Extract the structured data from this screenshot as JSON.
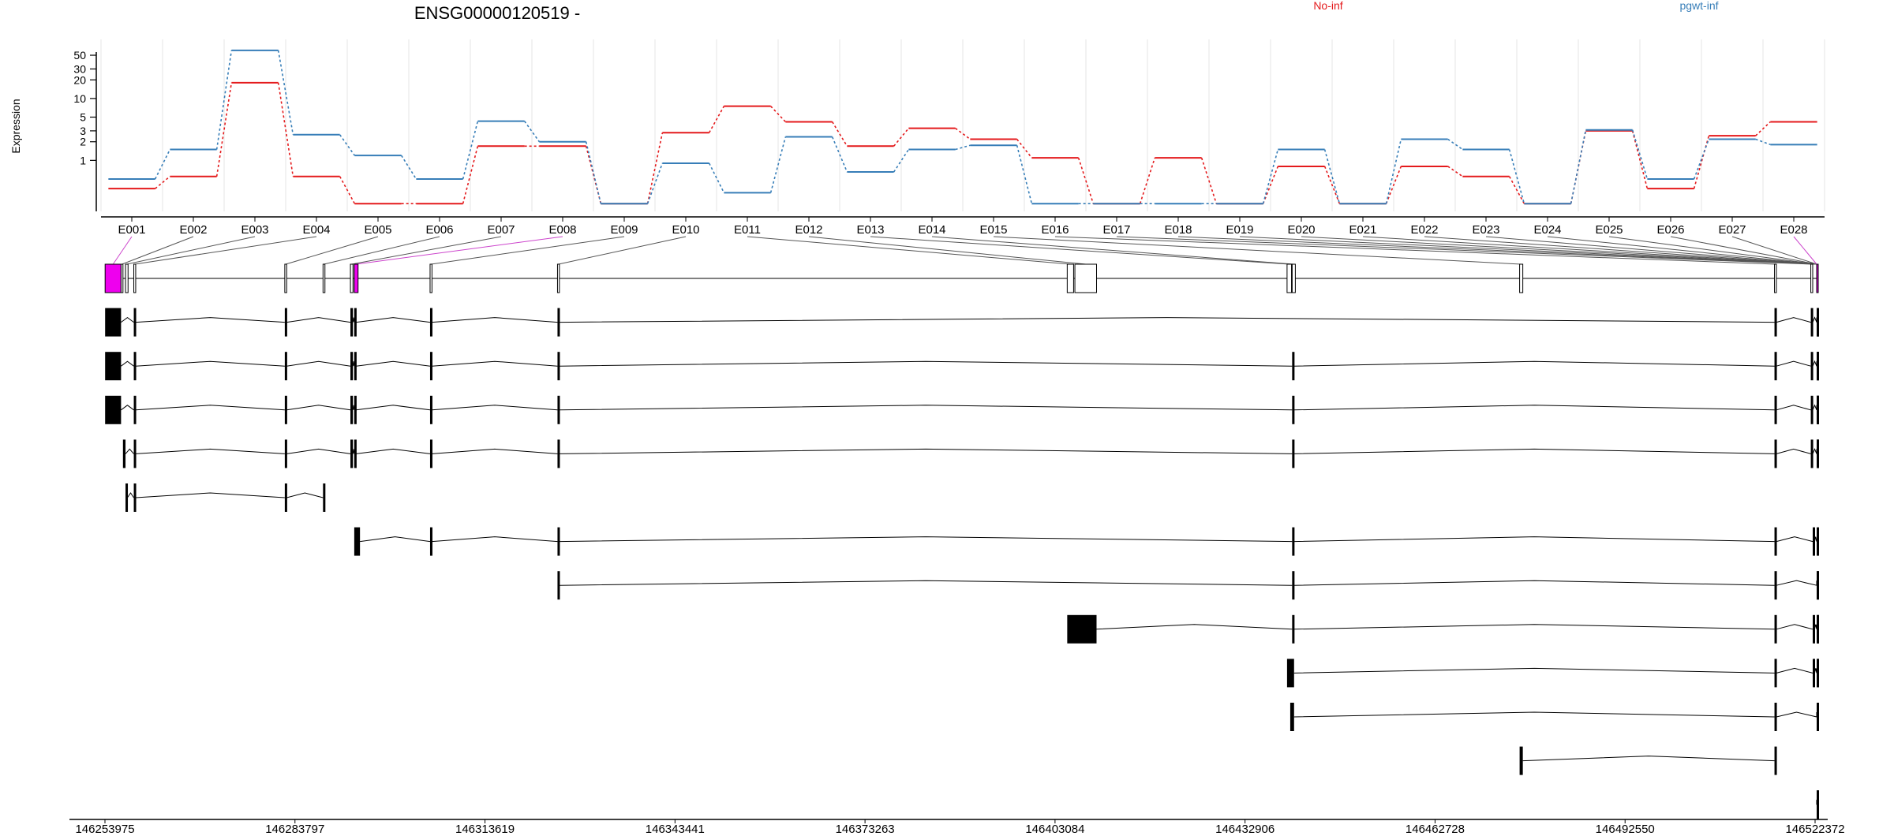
{
  "title": "ENSG00000120519 -",
  "colors": {
    "no_inf": "#e41a1c",
    "pgwt_inf": "#377eb8",
    "highlight": "#ee00ee",
    "exon": "#000000"
  },
  "chart_data": [
    {
      "type": "line",
      "ylabel": "Expression",
      "y_scale": "log",
      "y_ticks": [
        1,
        2,
        3,
        5,
        10,
        20,
        30,
        50
      ],
      "y_tick_labels": [
        "1",
        "2",
        "3",
        "5",
        "10",
        "20",
        "30",
        "50"
      ],
      "y_range": [
        0.15,
        90
      ],
      "grid": "vertical",
      "legend_position": "top-right",
      "categories": [
        "E001",
        "E002",
        "E003",
        "E004",
        "E005",
        "E006",
        "E007",
        "E008",
        "E009",
        "E010",
        "E011",
        "E012",
        "E013",
        "E014",
        "E015",
        "E016",
        "E017",
        "E018",
        "E019",
        "E020",
        "E021",
        "E022",
        "E023",
        "E024",
        "E025",
        "E026",
        "E027",
        "E028"
      ],
      "series": [
        {
          "name": "No-inf",
          "color": "#e41a1c",
          "values": [
            0.35,
            0.55,
            18,
            0.55,
            0.2,
            0.2,
            1.7,
            1.7,
            0.2,
            2.8,
            7.5,
            4.2,
            1.7,
            3.3,
            2.2,
            1.1,
            0.2,
            1.1,
            0.2,
            0.8,
            0.2,
            0.8,
            0.55,
            0.2,
            3.0,
            0.35,
            2.5,
            4.2
          ]
        },
        {
          "name": "pgwt-inf",
          "color": "#377eb8",
          "values": [
            0.5,
            1.5,
            60,
            2.6,
            1.2,
            0.5,
            4.3,
            2.0,
            0.2,
            0.9,
            0.3,
            2.4,
            0.65,
            1.5,
            1.75,
            0.2,
            0.2,
            0.2,
            0.2,
            1.5,
            0.2,
            2.2,
            1.5,
            0.2,
            3.1,
            0.5,
            2.2,
            1.8
          ]
        }
      ]
    },
    {
      "type": "gene-model",
      "x_tick_labels": [
        "146253975",
        "146283797",
        "146313619",
        "146343441",
        "146373263",
        "146403084",
        "146432906",
        "146462728",
        "146492550",
        "146522372"
      ],
      "x_range": [
        146253975,
        146522372
      ],
      "exon_ids": [
        "E001",
        "E002",
        "E003",
        "E004",
        "E005",
        "E006",
        "E007",
        "E008",
        "E009",
        "E010",
        "E011",
        "E012",
        "E013",
        "E014",
        "E015",
        "E016",
        "E017",
        "E018",
        "E019",
        "E020",
        "E021",
        "E022",
        "E023",
        "E024",
        "E025",
        "E026",
        "E027",
        "E028"
      ],
      "exon_spans": [
        [
          146254000,
          146256500
        ],
        [
          146256500,
          146256800
        ],
        [
          146257200,
          146257600
        ],
        [
          146258500,
          146258800
        ],
        [
          146282200,
          146282500
        ],
        [
          146288200,
          146288500
        ],
        [
          146292500,
          146292900
        ],
        [
          146293100,
          146293700
        ],
        [
          146305000,
          146305300
        ],
        [
          146325000,
          146325300
        ],
        [
          146405000,
          146406000
        ],
        [
          146406200,
          146409600
        ],
        [
          146439500,
          146440200
        ],
        [
          146440300,
          146440800
        ],
        [
          146476000,
          146476500
        ],
        [
          146516000,
          146516300
        ],
        [
          146521700,
          146522000
        ],
        [
          146527000,
          146527300
        ],
        [
          146531800,
          146532200
        ],
        [
          146533000,
          146533400
        ],
        [
          146543800,
          146544200
        ],
        [
          146551000,
          146552200
        ],
        [
          146556000,
          146560000
        ],
        [
          146562000,
          146564000
        ],
        [
          146566000,
          146566900
        ],
        [
          146568500,
          146569100
        ],
        [
          146571000,
          146571500
        ],
        [
          146572000,
          146572372
        ]
      ],
      "flattened_exon_fill": [
        "#ee00ee",
        "#ffffff",
        "#ffffff",
        "#ffffff",
        "#ffffff",
        "#ffffff",
        "#ffffff",
        "#ee00ee",
        "#ffffff",
        "#ffffff",
        "#ffffff",
        "#ffffff",
        "#ffffff",
        "#ffffff",
        "#ffffff",
        "#ffffff",
        "#ffffff",
        "#ffffff",
        "#ffffff",
        "#ffffff",
        "#ffffff",
        "#ffffff",
        "#ffffff",
        "#ffffff",
        "#ffffff",
        "#ffffff",
        "#ffffff",
        "#ee00ee"
      ],
      "transcripts": [
        {
          "exons": [
            [
              146254000,
              146256500
            ],
            [
              146258500,
              146258800
            ],
            [
              146282200,
              146282500
            ],
            [
              146292500,
              146292900
            ],
            [
              146293100,
              146293400
            ],
            [
              146305000,
              146305300
            ],
            [
              146325000,
              146325300
            ],
            [
              146516000,
              146516300
            ],
            [
              146521700,
              146522000
            ],
            [
              146527000,
              146527300
            ],
            [
              146533000,
              146533400
            ],
            [
              146535800,
              146536300
            ]
          ]
        },
        {
          "exons": [
            [
              146254000,
              146256500
            ],
            [
              146258500,
              146258800
            ],
            [
              146282200,
              146282500
            ],
            [
              146292500,
              146292900
            ],
            [
              146293100,
              146293400
            ],
            [
              146305000,
              146305300
            ],
            [
              146325000,
              146325300
            ],
            [
              146440300,
              146440600
            ],
            [
              146516000,
              146516300
            ],
            [
              146521700,
              146522000
            ],
            [
              146527000,
              146527300
            ],
            [
              146533000,
              146533400
            ],
            [
              146535800,
              146536300
            ]
          ]
        },
        {
          "exons": [
            [
              146254000,
              146256500
            ],
            [
              146258500,
              146258800
            ],
            [
              146282200,
              146282500
            ],
            [
              146292500,
              146292900
            ],
            [
              146293100,
              146293400
            ],
            [
              146305000,
              146305300
            ],
            [
              146325000,
              146325300
            ],
            [
              146440300,
              146440600
            ],
            [
              146516000,
              146516300
            ],
            [
              146521700,
              146522000
            ],
            [
              146527000,
              146527300
            ],
            [
              146533000,
              146533400
            ],
            [
              146535800,
              146536300
            ]
          ]
        },
        {
          "exons": [
            [
              146256800,
              146257200
            ],
            [
              146258500,
              146258800
            ],
            [
              146282200,
              146282500
            ],
            [
              146292500,
              146292900
            ],
            [
              146293100,
              146293400
            ],
            [
              146305000,
              146305300
            ],
            [
              146325000,
              146325300
            ],
            [
              146440300,
              146440600
            ],
            [
              146516000,
              146516300
            ],
            [
              146521700,
              146522000
            ],
            [
              146527000,
              146527300
            ],
            [
              146533000,
              146533400
            ],
            [
              146535800,
              146536300
            ]
          ]
        },
        {
          "exons": [
            [
              146257200,
              146257500
            ],
            [
              146258500,
              146258800
            ],
            [
              146282200,
              146282500
            ],
            [
              146288200,
              146288500
            ]
          ]
        },
        {
          "exons": [
            [
              146293100,
              146294000
            ],
            [
              146305000,
              146305300
            ],
            [
              146325000,
              146325300
            ],
            [
              146440300,
              146440600
            ],
            [
              146516000,
              146516300
            ],
            [
              146522000,
              146522300
            ],
            [
              146535800,
              146536300
            ]
          ]
        },
        {
          "exons": [
            [
              146325000,
              146325300
            ],
            [
              146440300,
              146440600
            ],
            [
              146516000,
              146516300
            ],
            [
              146528000,
              146528300
            ],
            [
              146535800,
              146536300
            ]
          ]
        },
        {
          "exons": [
            [
              146405000,
              146409600
            ],
            [
              146440300,
              146440600
            ],
            [
              146516000,
              146516300
            ],
            [
              146522000,
              146522300
            ],
            [
              146528000,
              146528300
            ],
            [
              146535800,
              146536300
            ]
          ]
        },
        {
          "exons": [
            [
              146439500,
              146440600
            ],
            [
              146516000,
              146516300
            ],
            [
              146522000,
              146522300
            ],
            [
              146528000,
              146528300
            ],
            [
              146535800,
              146536300
            ]
          ]
        },
        {
          "exons": [
            [
              146440000,
              146440600
            ],
            [
              146516000,
              146516300
            ],
            [
              146528000,
              146528300
            ],
            [
              146535800,
              146536300
            ]
          ]
        },
        {
          "exons": [
            [
              146476000,
              146476500
            ],
            [
              146516000,
              146516300
            ]
          ]
        },
        {
          "exons": [
            [
              146530500,
              146531800
            ],
            [
              146533000,
              146533400
            ],
            [
              146535800,
              146536300
            ]
          ]
        }
      ]
    }
  ]
}
